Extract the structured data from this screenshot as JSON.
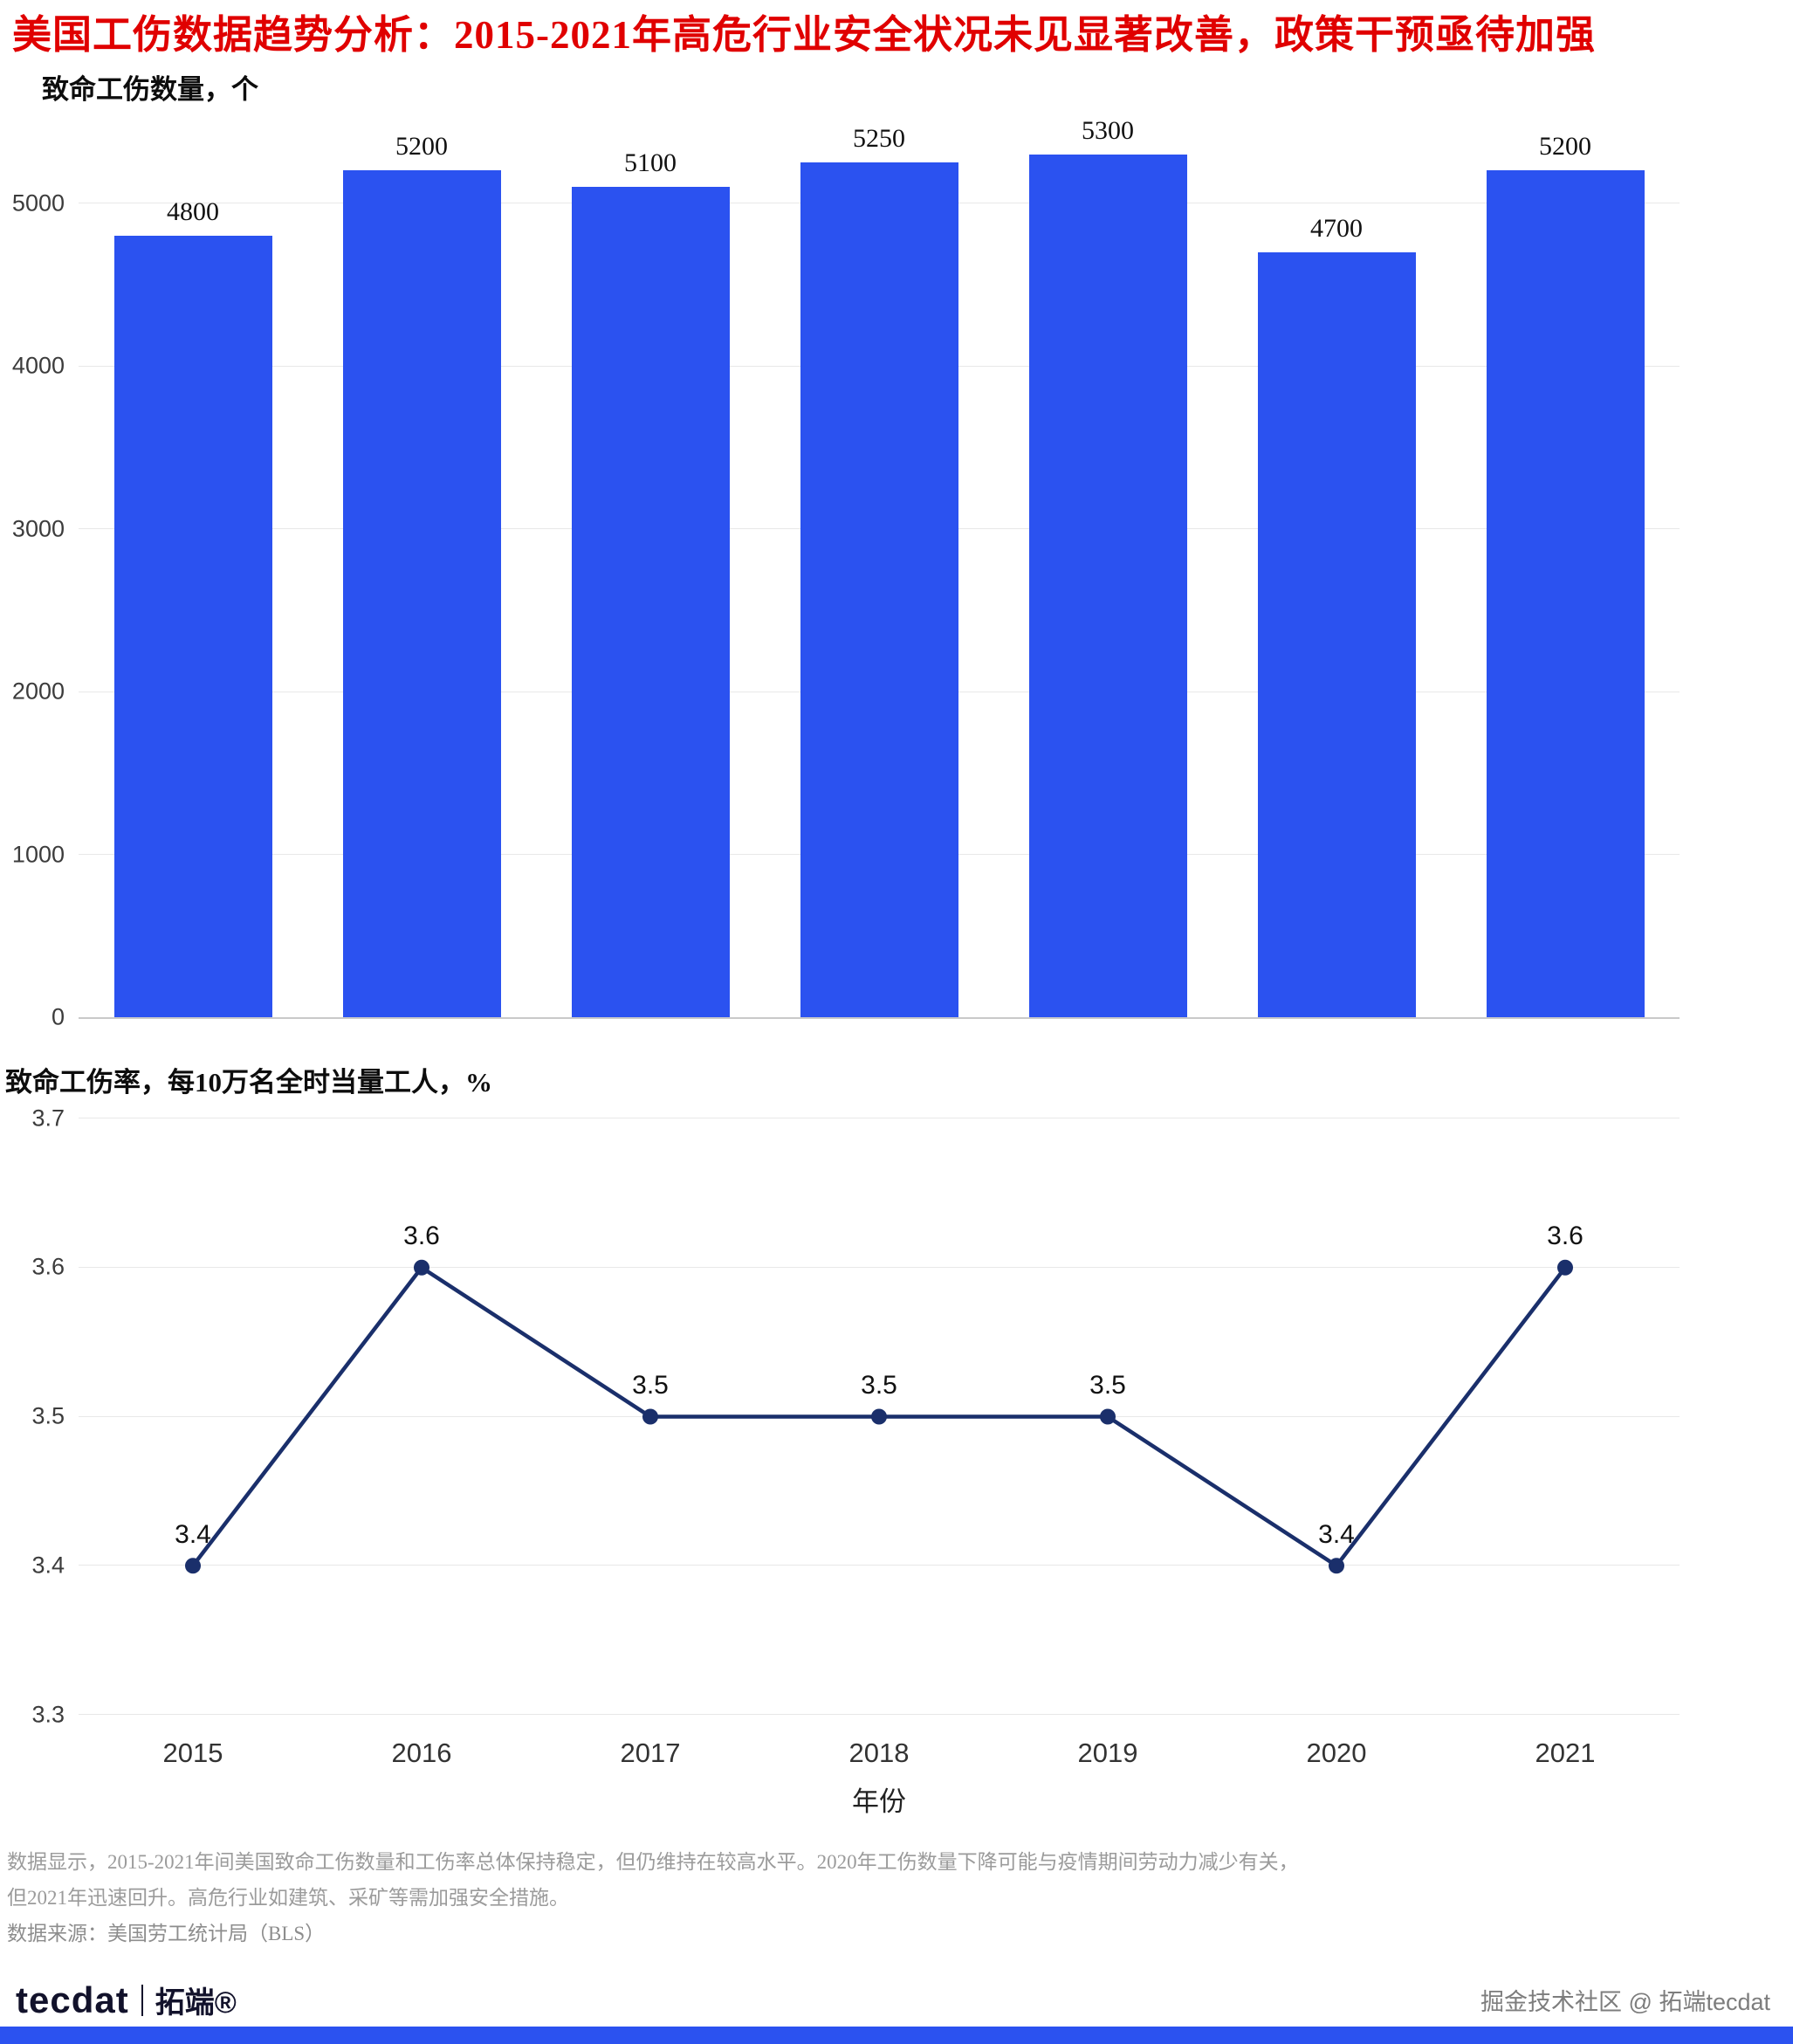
{
  "page": {
    "title": "美国工伤数据趋势分析：2015-2021年高危行业安全状况未见显著改善，政策干预亟待加强"
  },
  "colors": {
    "bar": "#2b52f0",
    "line": "#1a2f6b",
    "title_red": "#e00000",
    "grid": "#e8e8e8"
  },
  "chart_data": [
    {
      "type": "bar",
      "title": "致命工伤数量，个",
      "categories": [
        "2015",
        "2016",
        "2017",
        "2018",
        "2019",
        "2020",
        "2021"
      ],
      "values": [
        4800,
        5200,
        5100,
        5250,
        5300,
        4700,
        5200
      ],
      "ylabel": "致命工伤数量，个",
      "xlabel": "",
      "ylim": [
        0,
        5500
      ],
      "yticks": [
        0,
        1000,
        2000,
        3000,
        4000,
        5000
      ],
      "grid": true,
      "legend": "none",
      "bar_color": "#2b52f0"
    },
    {
      "type": "line",
      "title": "致命工伤率，每10万名全时当量工人，%",
      "categories": [
        "2015",
        "2016",
        "2017",
        "2018",
        "2019",
        "2020",
        "2021"
      ],
      "values": [
        3.4,
        3.6,
        3.5,
        3.5,
        3.5,
        3.4,
        3.6
      ],
      "ylabel": "致命工伤率，每10万名全时当量工人，%",
      "xlabel": "年份",
      "ylim": [
        3.3,
        3.7
      ],
      "yticks": [
        3.3,
        3.4,
        3.5,
        3.6,
        3.7
      ],
      "grid": true,
      "legend": "none",
      "line_color": "#1a2f6b"
    }
  ],
  "footnotes": {
    "line1": "数据显示，2015-2021年间美国致命工伤数量和工伤率总体保持稳定，但仍维持在较高水平。2020年工伤数量下降可能与疫情期间劳动力减少有关，",
    "line2": "但2021年迅速回升。高危行业如建筑、采矿等需加强安全措施。",
    "source": "数据来源：美国劳工统计局（BLS）"
  },
  "footer": {
    "logo_primary": "tecdat",
    "logo_secondary": "拓端®",
    "credit": "掘金技术社区 @ 拓端tecdat"
  }
}
